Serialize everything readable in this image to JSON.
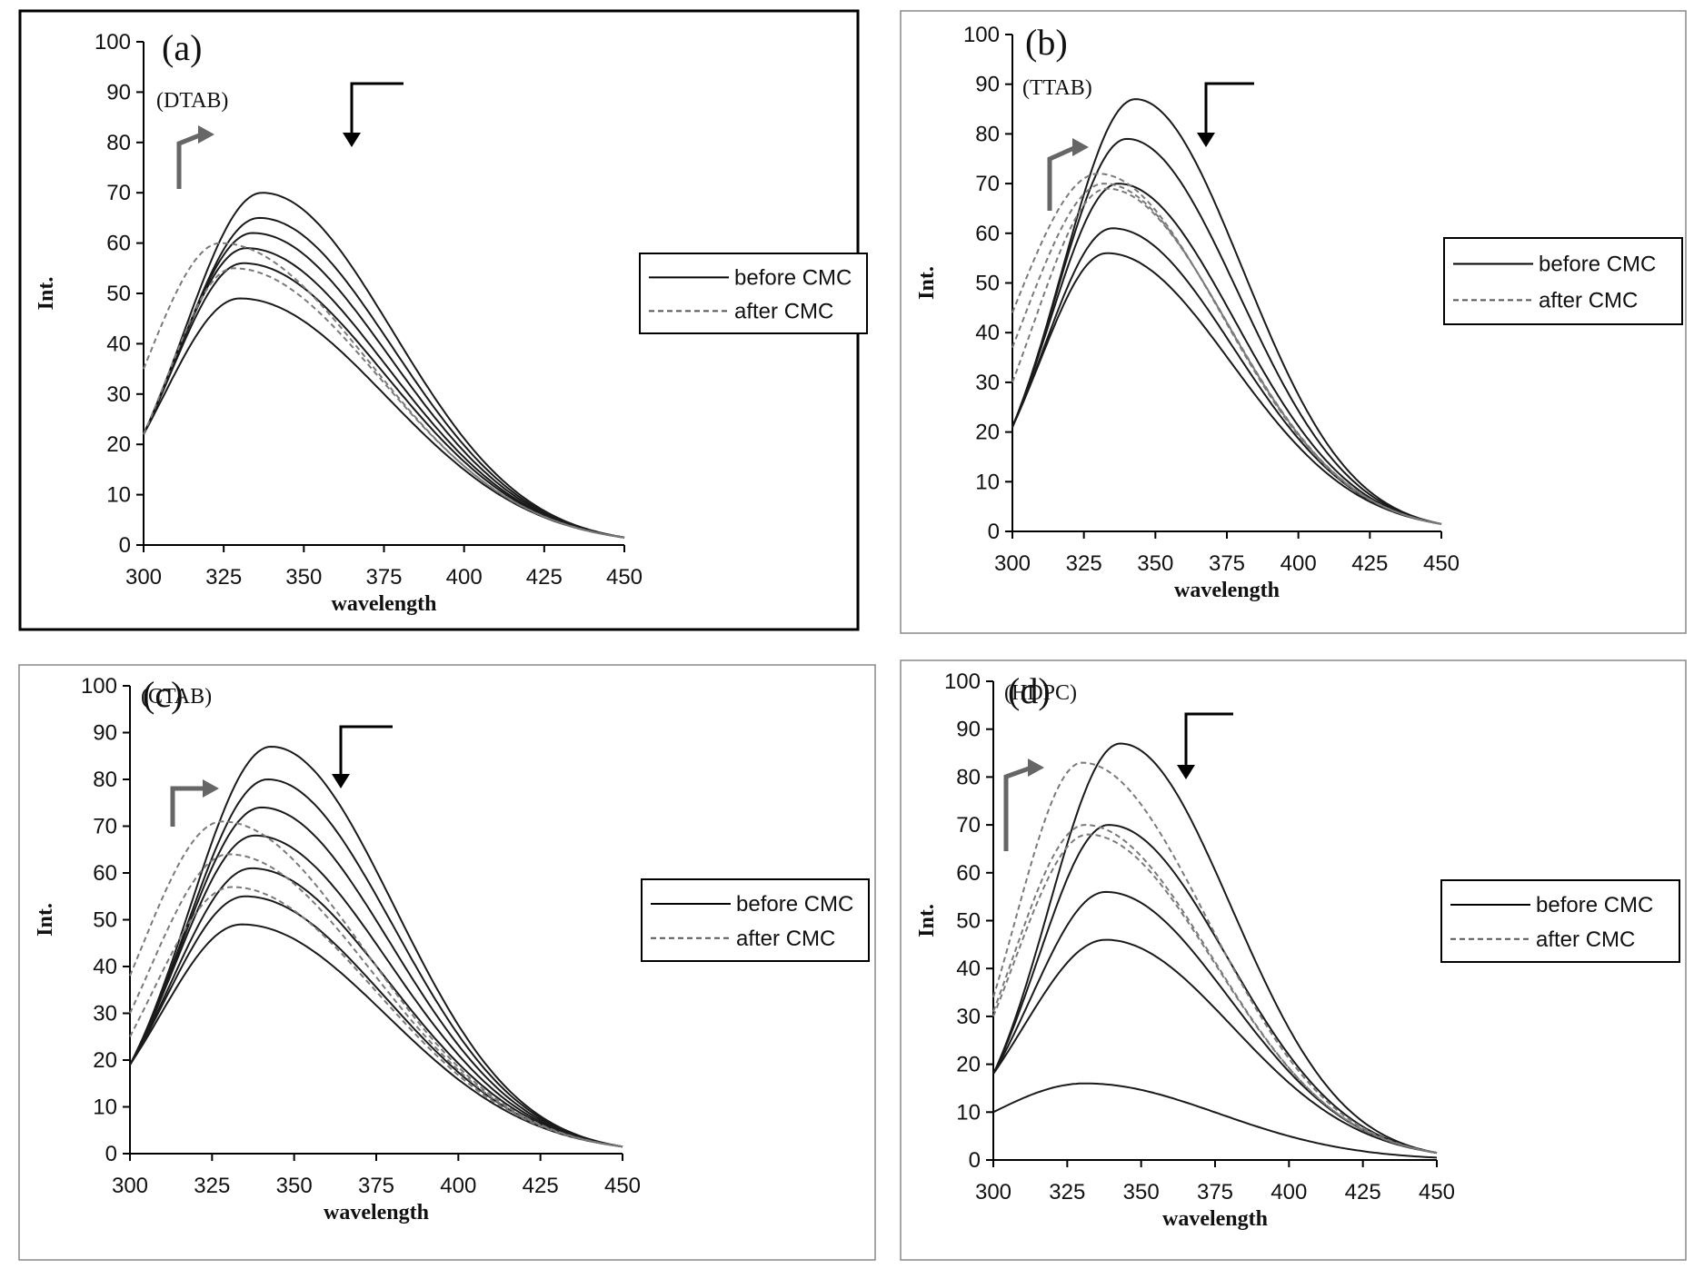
{
  "legend": {
    "before": "before CMC",
    "after": "after CMC"
  },
  "chart_data": [
    {
      "id": "a",
      "type": "line",
      "panel_label": "(a)",
      "surfactant": "(DTAB)",
      "xlabel": "wavelength",
      "ylabel": "Int.",
      "xlim": [
        300,
        450
      ],
      "ylim": [
        0,
        100
      ],
      "xticks": [
        300,
        325,
        350,
        375,
        400,
        425,
        450
      ],
      "yticks": [
        0,
        10,
        20,
        30,
        40,
        50,
        60,
        70,
        80,
        90,
        100
      ],
      "frame": "thick",
      "series": [
        {
          "group": "before",
          "start": 22,
          "peak": 70,
          "peak_x": 337,
          "end": 1.5
        },
        {
          "group": "before",
          "start": 22,
          "peak": 65,
          "peak_x": 336,
          "end": 1.5
        },
        {
          "group": "before",
          "start": 22,
          "peak": 62,
          "peak_x": 334,
          "end": 1.5
        },
        {
          "group": "before",
          "start": 22,
          "peak": 59,
          "peak_x": 332,
          "end": 1.5
        },
        {
          "group": "before",
          "start": 22,
          "peak": 56,
          "peak_x": 331,
          "end": 1.5
        },
        {
          "group": "before",
          "start": 22,
          "peak": 49,
          "peak_x": 330,
          "end": 1.5
        },
        {
          "group": "after",
          "start": 35,
          "peak": 60,
          "peak_x": 324,
          "end": 1.5
        },
        {
          "group": "after",
          "start": 22,
          "peak": 55,
          "peak_x": 328,
          "end": 1.5
        }
      ]
    },
    {
      "id": "b",
      "type": "line",
      "panel_label": "(b)",
      "surfactant": "(TTAB)",
      "xlabel": "wavelength",
      "ylabel": "Int.",
      "xlim": [
        300,
        450
      ],
      "ylim": [
        0,
        100
      ],
      "xticks": [
        300,
        325,
        350,
        375,
        400,
        425,
        450
      ],
      "yticks": [
        0,
        10,
        20,
        30,
        40,
        50,
        60,
        70,
        80,
        90,
        100
      ],
      "frame": "thin",
      "series": [
        {
          "group": "before",
          "start": 21,
          "peak": 87,
          "peak_x": 343,
          "end": 1.5
        },
        {
          "group": "before",
          "start": 21,
          "peak": 79,
          "peak_x": 340,
          "end": 1.5
        },
        {
          "group": "before",
          "start": 21,
          "peak": 70,
          "peak_x": 337,
          "end": 1.5
        },
        {
          "group": "before",
          "start": 21,
          "peak": 61,
          "peak_x": 335,
          "end": 1.5
        },
        {
          "group": "before",
          "start": 21,
          "peak": 56,
          "peak_x": 333,
          "end": 1.5
        },
        {
          "group": "after",
          "start": 44,
          "peak": 72,
          "peak_x": 330,
          "end": 1.5
        },
        {
          "group": "after",
          "start": 37,
          "peak": 70,
          "peak_x": 332,
          "end": 1.5
        },
        {
          "group": "after",
          "start": 30,
          "peak": 69,
          "peak_x": 333,
          "end": 1.5
        }
      ]
    },
    {
      "id": "c",
      "type": "line",
      "panel_label": "(c)",
      "surfactant": "(CTAB)",
      "xlabel": "wavelength",
      "ylabel": "Int.",
      "xlim": [
        300,
        450
      ],
      "ylim": [
        0,
        100
      ],
      "xticks": [
        300,
        325,
        350,
        375,
        400,
        425,
        450
      ],
      "yticks": [
        0,
        10,
        20,
        30,
        40,
        50,
        60,
        70,
        80,
        90,
        100
      ],
      "frame": "thin",
      "series": [
        {
          "group": "before",
          "start": 19,
          "peak": 87,
          "peak_x": 343,
          "end": 1.5
        },
        {
          "group": "before",
          "start": 19,
          "peak": 80,
          "peak_x": 342,
          "end": 1.5
        },
        {
          "group": "before",
          "start": 19,
          "peak": 74,
          "peak_x": 340,
          "end": 1.5
        },
        {
          "group": "before",
          "start": 19,
          "peak": 68,
          "peak_x": 338,
          "end": 1.5
        },
        {
          "group": "before",
          "start": 19,
          "peak": 61,
          "peak_x": 337,
          "end": 1.5
        },
        {
          "group": "before",
          "start": 19,
          "peak": 55,
          "peak_x": 335,
          "end": 1.5
        },
        {
          "group": "before",
          "start": 19,
          "peak": 49,
          "peak_x": 334,
          "end": 1.5
        },
        {
          "group": "after",
          "start": 38,
          "peak": 71,
          "peak_x": 328,
          "end": 1.5
        },
        {
          "group": "after",
          "start": 30,
          "peak": 64,
          "peak_x": 330,
          "end": 1.5
        },
        {
          "group": "after",
          "start": 25,
          "peak": 57,
          "peak_x": 331,
          "end": 1.5
        }
      ]
    },
    {
      "id": "d",
      "type": "line",
      "panel_label": "(d)",
      "surfactant": "(HDPC)",
      "xlabel": "wavelength",
      "ylabel": "Int.",
      "xlim": [
        300,
        450
      ],
      "ylim": [
        0,
        100
      ],
      "xticks": [
        300,
        325,
        350,
        375,
        400,
        425,
        450
      ],
      "yticks": [
        0,
        10,
        20,
        30,
        40,
        50,
        60,
        70,
        80,
        90,
        100
      ],
      "frame": "thin",
      "series": [
        {
          "group": "before",
          "start": 18,
          "peak": 87,
          "peak_x": 343,
          "end": 1.5
        },
        {
          "group": "before",
          "start": 18,
          "peak": 70,
          "peak_x": 339,
          "end": 1.5
        },
        {
          "group": "before",
          "start": 18,
          "peak": 56,
          "peak_x": 338,
          "end": 1.5
        },
        {
          "group": "before",
          "start": 18,
          "peak": 46,
          "peak_x": 338,
          "end": 1.5
        },
        {
          "group": "before",
          "start": 10,
          "peak": 16,
          "peak_x": 331,
          "end": 0.5
        },
        {
          "group": "after",
          "start": 34,
          "peak": 83,
          "peak_x": 330,
          "end": 1.5
        },
        {
          "group": "after",
          "start": 31,
          "peak": 70,
          "peak_x": 331,
          "end": 1.5
        },
        {
          "group": "after",
          "start": 30,
          "peak": 68,
          "peak_x": 332,
          "end": 1.5
        }
      ]
    }
  ]
}
